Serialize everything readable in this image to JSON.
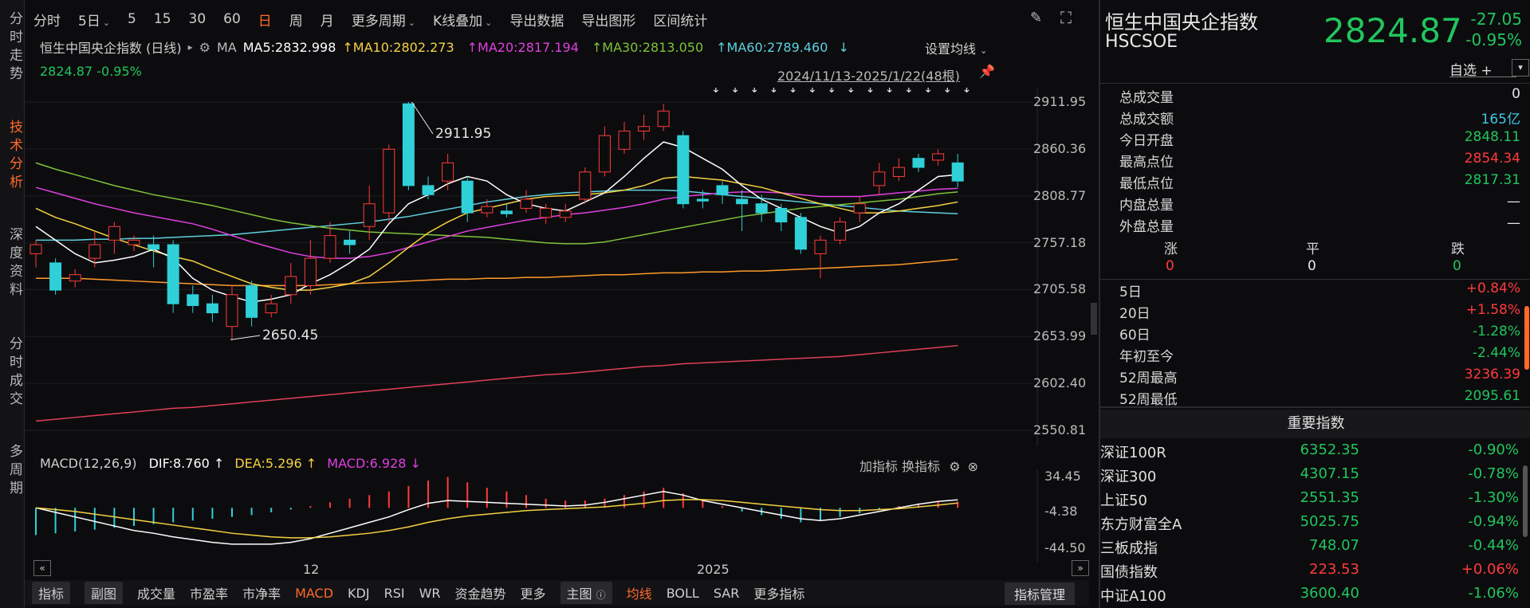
{
  "left_tabs": [
    {
      "label": "分时走势",
      "active": false
    },
    {
      "label": "技术分析",
      "active": true
    },
    {
      "label": "深度资料",
      "active": false
    },
    {
      "label": "分时成交",
      "active": false
    },
    {
      "label": "多周期",
      "active": false
    }
  ],
  "toolbar": {
    "items": [
      "分时",
      "5日",
      "5",
      "15",
      "30",
      "60",
      "日",
      "周",
      "月",
      "更多周期",
      "K线叠加",
      "导出数据",
      "导出图形",
      "区间统计"
    ],
    "active": "日"
  },
  "chart_header": {
    "name": "恒生中国央企指数 (日线)",
    "ma_label": "MA",
    "ma5": "MA5:2832.998",
    "ma10": "MA10:2802.273",
    "ma20": "MA20:2817.194",
    "ma30": "MA30:2813.050",
    "ma60": "MA60:2789.460",
    "set_ma": "设置均线",
    "last_price": "2824.87",
    "last_change": "-0.95%",
    "range": "2024/11/13-2025/1/22(48根)",
    "high_label": "2911.95",
    "low_label": "2650.45"
  },
  "colors": {
    "up": "#ff3b3b",
    "down": "#2fd0d8",
    "ma5": "#ffffff",
    "ma10": "#f5d142",
    "ma20": "#e040e0",
    "ma30": "#7ec23a",
    "ma60": "#5fd0e0",
    "ma120": "#ff9a2a",
    "ma250": "#e0405a",
    "accent": "#ff6a2a"
  },
  "price_axis": [
    "2911.95",
    "2860.36",
    "2808.77",
    "2757.18",
    "2705.58",
    "2653.99",
    "2602.40",
    "2550.81"
  ],
  "macd_header": {
    "title": "MACD(12,26,9)",
    "dif": "DIF:8.760",
    "dea": "DEA:5.296",
    "macd": "MACD:6.928",
    "add": "加指标",
    "swap": "换指标"
  },
  "macd_axis": [
    "34.45",
    "-4.38",
    "-44.50"
  ],
  "time_axis": {
    "mark1": "12",
    "mark2": "2025"
  },
  "chart_data": {
    "type": "candlestick",
    "ylim": [
      2550.81,
      2911.95
    ],
    "candles": [
      [
        2745,
        2755,
        2730,
        2760
      ],
      [
        2735,
        2705,
        2700,
        2740
      ],
      [
        2715,
        2722,
        2708,
        2728
      ],
      [
        2740,
        2755,
        2730,
        2770
      ],
      [
        2760,
        2775,
        2745,
        2780
      ],
      [
        2755,
        2760,
        2748,
        2765
      ],
      [
        2755,
        2750,
        2730,
        2765
      ],
      [
        2755,
        2690,
        2680,
        2760
      ],
      [
        2700,
        2688,
        2680,
        2710
      ],
      [
        2690,
        2680,
        2670,
        2700
      ],
      [
        2665,
        2700,
        2650,
        2710
      ],
      [
        2710,
        2675,
        2665,
        2715
      ],
      [
        2680,
        2690,
        2675,
        2700
      ],
      [
        2700,
        2720,
        2690,
        2735
      ],
      [
        2710,
        2740,
        2700,
        2760
      ],
      [
        2740,
        2765,
        2735,
        2780
      ],
      [
        2760,
        2755,
        2745,
        2770
      ],
      [
        2775,
        2800,
        2760,
        2820
      ],
      [
        2790,
        2860,
        2780,
        2865
      ],
      [
        2910,
        2820,
        2815,
        2911.95
      ],
      [
        2820,
        2810,
        2805,
        2830
      ],
      [
        2825,
        2845,
        2815,
        2855
      ],
      [
        2825,
        2790,
        2780,
        2830
      ],
      [
        2790,
        2797,
        2785,
        2805
      ],
      [
        2792,
        2789,
        2785,
        2800
      ],
      [
        2795,
        2805,
        2790,
        2815
      ],
      [
        2785,
        2795,
        2778,
        2800
      ],
      [
        2785,
        2792,
        2780,
        2800
      ],
      [
        2805,
        2835,
        2800,
        2840
      ],
      [
        2835,
        2875,
        2830,
        2885
      ],
      [
        2860,
        2880,
        2855,
        2890
      ],
      [
        2880,
        2885,
        2870,
        2898
      ],
      [
        2885,
        2902,
        2880,
        2910
      ],
      [
        2875,
        2800,
        2795,
        2880
      ],
      [
        2805,
        2803,
        2795,
        2815
      ],
      [
        2820,
        2810,
        2800,
        2825
      ],
      [
        2805,
        2800,
        2770,
        2815
      ],
      [
        2800,
        2790,
        2780,
        2810
      ],
      [
        2795,
        2780,
        2770,
        2800
      ],
      [
        2785,
        2750,
        2745,
        2790
      ],
      [
        2745,
        2760,
        2718,
        2765
      ],
      [
        2760,
        2780,
        2755,
        2785
      ],
      [
        2790,
        2800,
        2780,
        2808
      ],
      [
        2820,
        2835,
        2810,
        2845
      ],
      [
        2830,
        2840,
        2825,
        2850
      ],
      [
        2850,
        2840,
        2835,
        2855
      ],
      [
        2848,
        2855,
        2842,
        2860
      ],
      [
        2845,
        2825,
        2818,
        2855
      ]
    ],
    "ma5": [
      2775,
      2760,
      2745,
      2735,
      2738,
      2742,
      2750,
      2740,
      2718,
      2705,
      2698,
      2692,
      2695,
      2700,
      2712,
      2722,
      2735,
      2750,
      2778,
      2800,
      2810,
      2822,
      2830,
      2825,
      2810,
      2800,
      2795,
      2792,
      2802,
      2812,
      2830,
      2850,
      2868,
      2862,
      2850,
      2838,
      2820,
      2805,
      2795,
      2785,
      2775,
      2768,
      2775,
      2790,
      2800,
      2815,
      2830,
      2832
    ],
    "ma10": [
      2795,
      2785,
      2778,
      2770,
      2762,
      2755,
      2748,
      2742,
      2737,
      2728,
      2720,
      2712,
      2708,
      2705,
      2705,
      2708,
      2712,
      2720,
      2735,
      2752,
      2768,
      2780,
      2790,
      2795,
      2800,
      2805,
      2808,
      2809,
      2810,
      2812,
      2815,
      2820,
      2828,
      2830,
      2828,
      2826,
      2822,
      2818,
      2812,
      2806,
      2800,
      2795,
      2790,
      2790,
      2792,
      2795,
      2798,
      2802
    ],
    "ma20": [
      2818,
      2812,
      2806,
      2800,
      2795,
      2790,
      2786,
      2782,
      2778,
      2772,
      2765,
      2758,
      2752,
      2746,
      2742,
      2740,
      2740,
      2742,
      2746,
      2752,
      2758,
      2764,
      2770,
      2774,
      2778,
      2782,
      2785,
      2788,
      2790,
      2793,
      2796,
      2800,
      2805,
      2808,
      2810,
      2812,
      2813,
      2813,
      2812,
      2810,
      2808,
      2808,
      2808,
      2810,
      2812,
      2814,
      2816,
      2817
    ],
    "ma30": [
      2845,
      2838,
      2832,
      2826,
      2820,
      2815,
      2810,
      2806,
      2802,
      2798,
      2793,
      2788,
      2783,
      2779,
      2776,
      2773,
      2771,
      2769,
      2768,
      2767,
      2766,
      2765,
      2764,
      2763,
      2761,
      2759,
      2757,
      2756,
      2756,
      2758,
      2762,
      2766,
      2770,
      2774,
      2778,
      2782,
      2786,
      2789,
      2792,
      2795,
      2797,
      2799,
      2801,
      2803,
      2805,
      2808,
      2811,
      2813
    ],
    "ma60": [
      2760,
      2760,
      2760,
      2761,
      2761,
      2762,
      2762,
      2763,
      2764,
      2765,
      2766,
      2768,
      2770,
      2772,
      2774,
      2776,
      2778,
      2780,
      2783,
      2786,
      2790,
      2794,
      2798,
      2802,
      2805,
      2808,
      2810,
      2812,
      2813,
      2814,
      2815,
      2815,
      2815,
      2814,
      2812,
      2810,
      2808,
      2806,
      2804,
      2802,
      2800,
      2798,
      2796,
      2794,
      2792,
      2791,
      2790,
      2789
    ],
    "ma120": [
      2718,
      2718,
      2718,
      2717,
      2716,
      2715,
      2714,
      2713,
      2712,
      2711,
      2710,
      2710,
      2710,
      2710,
      2710,
      2711,
      2712,
      2713,
      2714,
      2715,
      2716,
      2717,
      2717,
      2718,
      2718,
      2719,
      2719,
      2720,
      2721,
      2722,
      2722,
      2723,
      2724,
      2724,
      2725,
      2725,
      2726,
      2726,
      2727,
      2728,
      2729,
      2730,
      2731,
      2732,
      2733,
      2735,
      2737,
      2739
    ],
    "ma250": [
      2561,
      2563,
      2565,
      2567,
      2569,
      2571,
      2573,
      2575,
      2576,
      2578,
      2580,
      2582,
      2584,
      2586,
      2588,
      2590,
      2592,
      2594,
      2596,
      2598,
      2600,
      2602,
      2604,
      2606,
      2608,
      2610,
      2612,
      2613,
      2615,
      2617,
      2619,
      2621,
      2622,
      2624,
      2625,
      2626,
      2627,
      2628,
      2629,
      2630,
      2631,
      2632,
      2634,
      2636,
      2638,
      2640,
      2642,
      2644
    ],
    "macd_ylim": [
      -44.5,
      34.45
    ],
    "macd_hist": [
      -30,
      -28,
      -26,
      -24,
      -22,
      -20,
      -18,
      -16,
      -14,
      -12,
      -10,
      -8,
      -5,
      -2,
      2,
      6,
      10,
      14,
      18,
      24,
      30,
      34,
      28,
      22,
      18,
      14,
      10,
      8,
      8,
      10,
      14,
      18,
      22,
      16,
      8,
      2,
      -4,
      -8,
      -12,
      -16,
      -14,
      -10,
      -6,
      -2,
      2,
      5,
      7,
      6.928
    ],
    "dif": [
      0,
      -5,
      -10,
      -15,
      -20,
      -25,
      -28,
      -32,
      -35,
      -38,
      -40,
      -40,
      -40,
      -38,
      -34,
      -28,
      -22,
      -16,
      -10,
      -2,
      5,
      8,
      7,
      6,
      5,
      4,
      3,
      2,
      3,
      6,
      10,
      14,
      18,
      14,
      8,
      4,
      0,
      -4,
      -8,
      -12,
      -14,
      -12,
      -8,
      -4,
      0,
      4,
      7,
      8.76
    ],
    "dea": [
      0,
      -2,
      -4,
      -7,
      -10,
      -13,
      -16,
      -19,
      -22,
      -25,
      -28,
      -30,
      -32,
      -33,
      -33,
      -32,
      -30,
      -28,
      -25,
      -21,
      -16,
      -12,
      -9,
      -7,
      -5,
      -3,
      -2,
      -1,
      0,
      1,
      3,
      5,
      8,
      9,
      9,
      8,
      6,
      4,
      2,
      0,
      -2,
      -3,
      -3,
      -2,
      -1,
      1,
      3,
      5.296
    ]
  },
  "bottom_bar": [
    "指标",
    "副图",
    "成交量",
    "市盈率",
    "市净率",
    "MACD",
    "KDJ",
    "RSI",
    "WR",
    "资金趋势",
    "更多",
    "主图",
    "均线",
    "BOLL",
    "SAR",
    "更多指标"
  ],
  "bottom_right": "指标管理",
  "right_panel": {
    "name_cn": "恒生中国央企指数",
    "code": "HSCSOE",
    "price": "2824.87",
    "change": "-27.05",
    "change_pct": "-0.95%",
    "watch": "自选 +",
    "stats": [
      {
        "label": "总成交量",
        "value": "0",
        "color": "white"
      },
      {
        "label": "总成交额",
        "value": "165亿",
        "color": "cyan"
      },
      {
        "label": "今日开盘",
        "value": "2848.11",
        "color": "green"
      },
      {
        "label": "最高点位",
        "value": "2854.34",
        "color": "red"
      },
      {
        "label": "最低点位",
        "value": "2817.31",
        "color": "green"
      },
      {
        "label": "内盘总量",
        "value": "—",
        "color": "white"
      },
      {
        "label": "外盘总量",
        "value": "—",
        "color": "white"
      }
    ],
    "breadth_labels": [
      "涨",
      "平",
      "跌"
    ],
    "breadth_values": [
      "0",
      "0",
      "0"
    ],
    "periods": [
      {
        "label": "5日",
        "value": "+0.84%",
        "color": "red"
      },
      {
        "label": "20日",
        "value": "+1.58%",
        "color": "red"
      },
      {
        "label": "60日",
        "value": "-1.28%",
        "color": "green"
      },
      {
        "label": "年初至今",
        "value": "-2.44%",
        "color": "green"
      },
      {
        "label": "52周最高",
        "value": "3236.39",
        "color": "red"
      },
      {
        "label": "52周最低",
        "value": "2095.61",
        "color": "green"
      }
    ],
    "indices_title": "重要指数",
    "indices": [
      {
        "name": "深证100R",
        "price": "6352.35",
        "pct": "-0.90%",
        "pcolor": "green",
        "ccolor": "green"
      },
      {
        "name": "深证300",
        "price": "4307.15",
        "pct": "-0.78%",
        "pcolor": "green",
        "ccolor": "green"
      },
      {
        "name": "上证50",
        "price": "2551.35",
        "pct": "-1.30%",
        "pcolor": "green",
        "ccolor": "green"
      },
      {
        "name": "东方财富全A",
        "price": "5025.75",
        "pct": "-0.94%",
        "pcolor": "green",
        "ccolor": "green"
      },
      {
        "name": "三板成指",
        "price": "748.07",
        "pct": "-0.44%",
        "pcolor": "green",
        "ccolor": "green"
      },
      {
        "name": "国债指数",
        "price": "223.53",
        "pct": "+0.06%",
        "pcolor": "red",
        "ccolor": "red"
      },
      {
        "name": "中证A100",
        "price": "3600.40",
        "pct": "-1.06%",
        "pcolor": "green",
        "ccolor": "green"
      }
    ]
  }
}
